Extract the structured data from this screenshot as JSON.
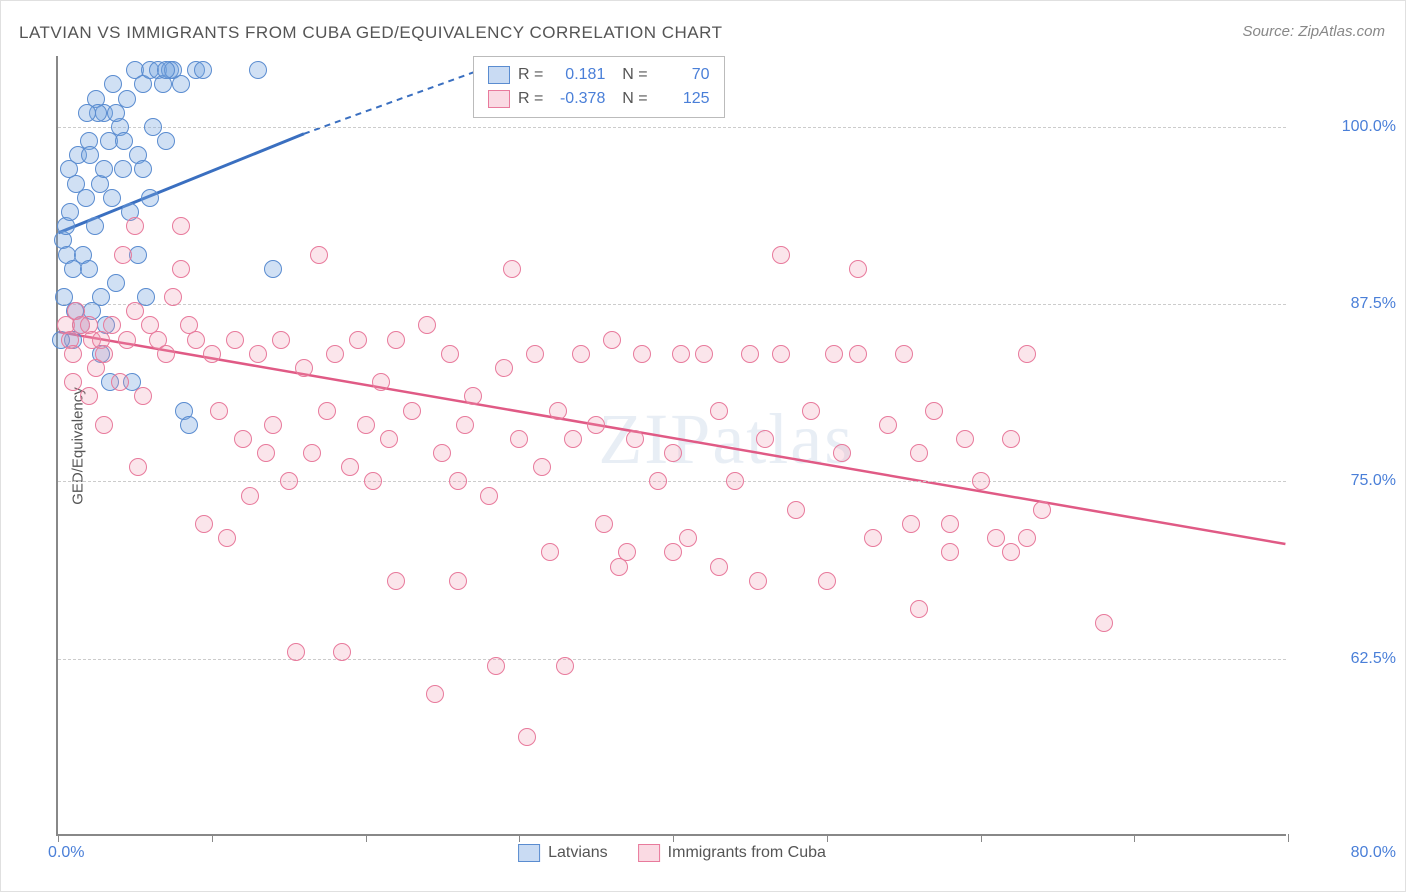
{
  "title": "LATVIAN VS IMMIGRANTS FROM CUBA GED/EQUIVALENCY CORRELATION CHART",
  "source": "Source: ZipAtlas.com",
  "watermark": "ZIPatlas",
  "ylabel": "GED/Equivalency",
  "chart": {
    "type": "scatter",
    "xlim": [
      0,
      80
    ],
    "ylim": [
      50,
      105
    ],
    "xtick_labels": {
      "0": "0.0%",
      "80": "80.0%"
    },
    "xtick_positions": [
      0,
      10,
      20,
      30,
      40,
      50,
      60,
      70,
      80
    ],
    "ytick_labels": {
      "62.5": "62.5%",
      "75": "75.0%",
      "87.5": "87.5%",
      "100": "100.0%"
    },
    "grid_color": "#cccccc",
    "background_color": "#ffffff",
    "marker_size": 18,
    "series": [
      {
        "name": "Latvians",
        "color_fill": "rgba(120,166,224,0.35)",
        "color_stroke": "#5a8cd0",
        "R": "0.181",
        "N": "70",
        "trend": {
          "x1": 0,
          "y1": 92.5,
          "x2": 16,
          "y2": 99.5,
          "dash_x2": 30,
          "dash_y2": 105,
          "color": "#3a6fc0",
          "width": 3
        },
        "points": [
          [
            0.3,
            92
          ],
          [
            0.5,
            93
          ],
          [
            0.6,
            91
          ],
          [
            0.8,
            94
          ],
          [
            1.0,
            85
          ],
          [
            1.1,
            87
          ],
          [
            1.2,
            96
          ],
          [
            1.3,
            98
          ],
          [
            1.5,
            86
          ],
          [
            1.6,
            91
          ],
          [
            1.8,
            95
          ],
          [
            2.0,
            99
          ],
          [
            2.1,
            98
          ],
          [
            2.2,
            87
          ],
          [
            2.4,
            93
          ],
          [
            2.5,
            102
          ],
          [
            2.7,
            96
          ],
          [
            2.8,
            88
          ],
          [
            3.0,
            101
          ],
          [
            3.1,
            86
          ],
          [
            3.3,
            99
          ],
          [
            3.5,
            95
          ],
          [
            3.6,
            103
          ],
          [
            3.8,
            89
          ],
          [
            4.0,
            100
          ],
          [
            4.2,
            97
          ],
          [
            4.5,
            102
          ],
          [
            4.7,
            94
          ],
          [
            5.0,
            104
          ],
          [
            5.2,
            98
          ],
          [
            5.5,
            103
          ],
          [
            5.7,
            88
          ],
          [
            6.0,
            104
          ],
          [
            6.2,
            100
          ],
          [
            6.5,
            104
          ],
          [
            6.8,
            103
          ],
          [
            7.0,
            99
          ],
          [
            7.3,
            104
          ],
          [
            7.5,
            104
          ],
          [
            8.0,
            103
          ],
          [
            8.2,
            80
          ],
          [
            3.4,
            82
          ],
          [
            4.8,
            82
          ],
          [
            0.4,
            88
          ],
          [
            1.0,
            90
          ],
          [
            2.0,
            90
          ],
          [
            0.2,
            85
          ],
          [
            5.2,
            91
          ],
          [
            2.6,
            101
          ],
          [
            3.0,
            97
          ],
          [
            3.8,
            101
          ],
          [
            4.3,
            99
          ],
          [
            5.5,
            97
          ],
          [
            6.0,
            95
          ],
          [
            2.8,
            84
          ],
          [
            1.9,
            101
          ],
          [
            0.7,
            97
          ],
          [
            9.0,
            104
          ],
          [
            9.4,
            104
          ],
          [
            7.0,
            104
          ],
          [
            13.0,
            104
          ],
          [
            14.0,
            90
          ],
          [
            8.5,
            79
          ]
        ]
      },
      {
        "name": "Immigrants from Cuba",
        "color_fill": "rgba(240,150,175,0.25)",
        "color_stroke": "#e87a9c",
        "R": "-0.378",
        "N": "125",
        "trend": {
          "x1": 0,
          "y1": 85.5,
          "x2": 80,
          "y2": 70.5,
          "color": "#e05a85",
          "width": 2.5
        },
        "points": [
          [
            0.5,
            86
          ],
          [
            0.8,
            85
          ],
          [
            1.0,
            84
          ],
          [
            1.2,
            87
          ],
          [
            1.5,
            86
          ],
          [
            2.0,
            86
          ],
          [
            2.2,
            85
          ],
          [
            2.5,
            83
          ],
          [
            2.8,
            85
          ],
          [
            3.0,
            84
          ],
          [
            3.5,
            86
          ],
          [
            4.0,
            82
          ],
          [
            4.2,
            91
          ],
          [
            4.5,
            85
          ],
          [
            5.0,
            87
          ],
          [
            5.2,
            76
          ],
          [
            5.5,
            81
          ],
          [
            6.0,
            86
          ],
          [
            6.5,
            85
          ],
          [
            7.0,
            84
          ],
          [
            7.5,
            88
          ],
          [
            8.0,
            90
          ],
          [
            8.5,
            86
          ],
          [
            9.0,
            85
          ],
          [
            9.5,
            72
          ],
          [
            10.0,
            84
          ],
          [
            10.5,
            80
          ],
          [
            11.0,
            71
          ],
          [
            11.5,
            85
          ],
          [
            12.0,
            78
          ],
          [
            12.5,
            74
          ],
          [
            13.0,
            84
          ],
          [
            13.5,
            77
          ],
          [
            14.0,
            79
          ],
          [
            14.5,
            85
          ],
          [
            15.0,
            75
          ],
          [
            15.5,
            63
          ],
          [
            16.0,
            83
          ],
          [
            16.5,
            77
          ],
          [
            17.0,
            91
          ],
          [
            17.5,
            80
          ],
          [
            18.0,
            84
          ],
          [
            18.5,
            63
          ],
          [
            19.0,
            76
          ],
          [
            19.5,
            85
          ],
          [
            20.0,
            79
          ],
          [
            20.5,
            75
          ],
          [
            21.0,
            82
          ],
          [
            21.5,
            78
          ],
          [
            22.0,
            85
          ],
          [
            23.0,
            80
          ],
          [
            24.0,
            86
          ],
          [
            24.5,
            60
          ],
          [
            25.0,
            77
          ],
          [
            25.5,
            84
          ],
          [
            26.0,
            75
          ],
          [
            26.5,
            79
          ],
          [
            27.0,
            81
          ],
          [
            28.0,
            74
          ],
          [
            28.5,
            62
          ],
          [
            29.0,
            83
          ],
          [
            29.5,
            90
          ],
          [
            30.0,
            78
          ],
          [
            30.5,
            57
          ],
          [
            31.0,
            84
          ],
          [
            31.5,
            76
          ],
          [
            32.0,
            70
          ],
          [
            32.5,
            80
          ],
          [
            33.0,
            62
          ],
          [
            33.5,
            78
          ],
          [
            34.0,
            84
          ],
          [
            35.0,
            79
          ],
          [
            35.5,
            72
          ],
          [
            36.0,
            85
          ],
          [
            37.0,
            70
          ],
          [
            37.5,
            78
          ],
          [
            38.0,
            84
          ],
          [
            39.0,
            75
          ],
          [
            40.0,
            77
          ],
          [
            40.5,
            84
          ],
          [
            41.0,
            71
          ],
          [
            42.0,
            84
          ],
          [
            43.0,
            80
          ],
          [
            44.0,
            75
          ],
          [
            45.0,
            84
          ],
          [
            45.5,
            68
          ],
          [
            46.0,
            78
          ],
          [
            47.0,
            84
          ],
          [
            48.0,
            73
          ],
          [
            49.0,
            80
          ],
          [
            50.0,
            68
          ],
          [
            50.5,
            84
          ],
          [
            51.0,
            77
          ],
          [
            52.0,
            84
          ],
          [
            53.0,
            71
          ],
          [
            54.0,
            79
          ],
          [
            55.0,
            84
          ],
          [
            55.5,
            72
          ],
          [
            56.0,
            77
          ],
          [
            57.0,
            80
          ],
          [
            58.0,
            72
          ],
          [
            59.0,
            78
          ],
          [
            60.0,
            75
          ],
          [
            61.0,
            71
          ],
          [
            62.0,
            78
          ],
          [
            63.0,
            84
          ],
          [
            64.0,
            73
          ],
          [
            56.0,
            66
          ],
          [
            58.0,
            70
          ],
          [
            62.0,
            70
          ],
          [
            63.0,
            71
          ],
          [
            68.0,
            65
          ],
          [
            47.0,
            91
          ],
          [
            52.0,
            90
          ],
          [
            2.0,
            81
          ],
          [
            3.0,
            79
          ],
          [
            5.0,
            93
          ],
          [
            8.0,
            93
          ],
          [
            1.0,
            82
          ],
          [
            22.0,
            68
          ],
          [
            26.0,
            68
          ],
          [
            36.5,
            69
          ],
          [
            40.0,
            70
          ],
          [
            43.0,
            69
          ]
        ]
      }
    ]
  },
  "bottom_legend": [
    {
      "swatch": "blue",
      "label": "Latvians"
    },
    {
      "swatch": "pink",
      "label": "Immigrants from Cuba"
    }
  ]
}
